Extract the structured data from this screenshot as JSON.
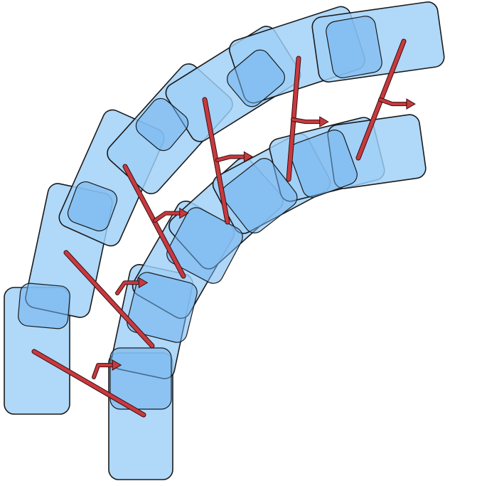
{
  "diagram": {
    "colors": {
      "box_fill": "#9fd0f7",
      "box_stroke": "#1a1a1a",
      "beam": "#c73a3f",
      "beam_outline": "#2a0a0a",
      "background": "#ffffff"
    },
    "description_tokens": {
      "outer_band": "outer-box-band",
      "inner_band": "inner-box-band",
      "scan": "scan-line"
    }
  }
}
